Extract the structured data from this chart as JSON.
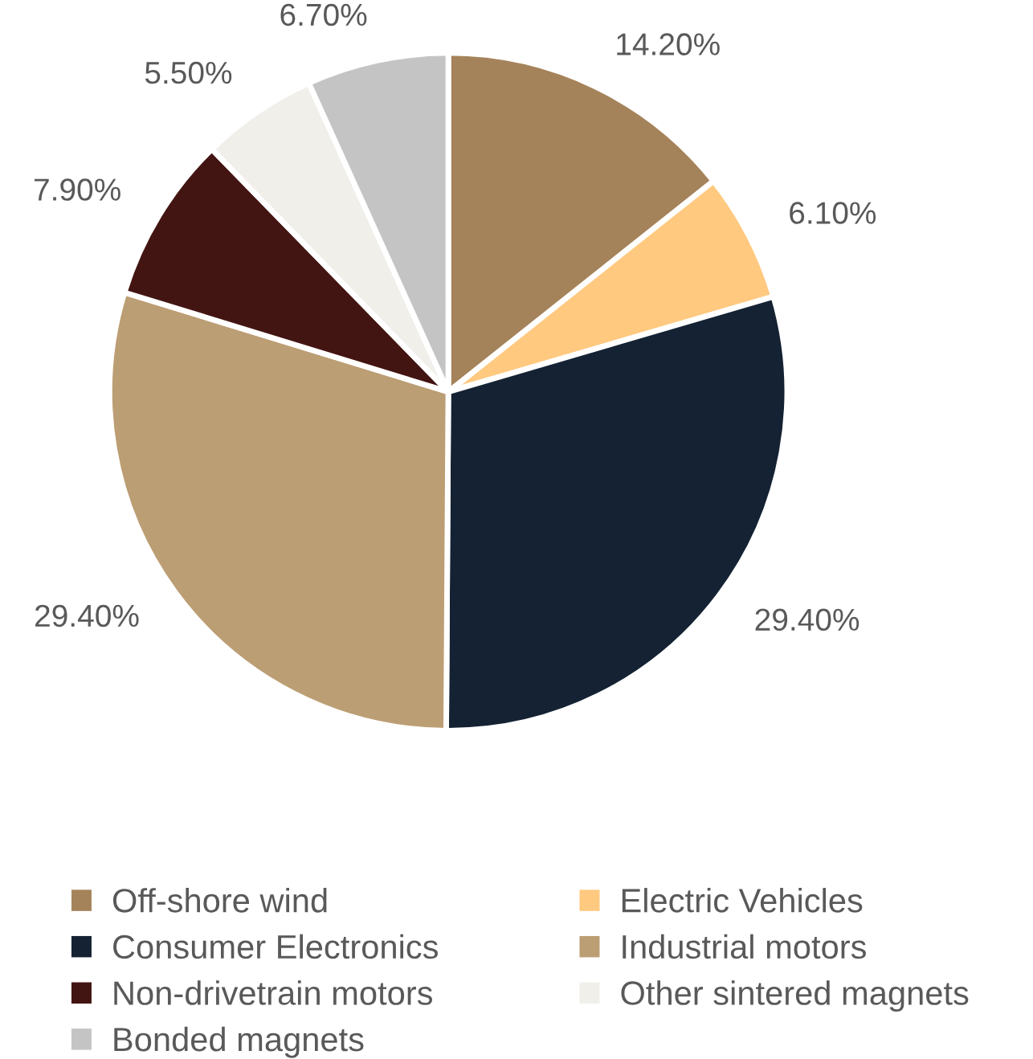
{
  "chart_data": {
    "type": "pie",
    "categories": [
      "Off-shore wind",
      "Electric Vehicles",
      "Consumer Electronics",
      "Industrial motors",
      "Non-drivetrain motors",
      "Other sintered magnets",
      "Bonded magnets"
    ],
    "values": [
      14.2,
      6.1,
      29.4,
      29.4,
      7.9,
      5.5,
      6.7
    ],
    "value_labels": [
      "14.20%",
      "6.10%",
      "29.40%",
      "29.40%",
      "7.90%",
      "5.50%",
      "6.70%"
    ],
    "colors": [
      "#a5835a",
      "#ffc980",
      "#142233",
      "#bc9e74",
      "#431512",
      "#f0efea",
      "#c4c4c4"
    ],
    "legend": "bottom"
  }
}
